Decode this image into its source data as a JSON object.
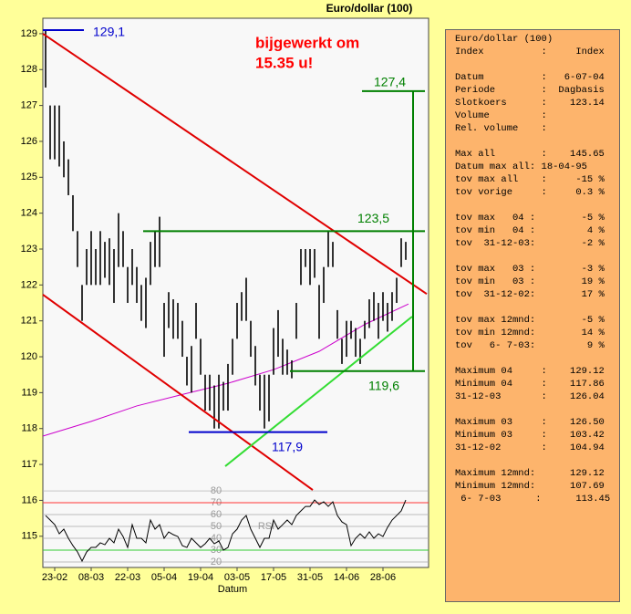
{
  "chart_data": [
    {
      "type": "hilo",
      "title": "Euro/dollar (100)",
      "x_label": "Datum",
      "color": "#000000",
      "x": [
        0,
        1,
        2,
        3,
        4,
        5,
        6,
        7,
        8,
        9,
        10,
        11,
        12,
        13,
        14,
        15,
        16,
        17,
        18,
        19,
        20,
        21,
        22,
        23,
        24,
        25,
        26,
        27,
        28,
        29,
        30,
        31,
        32,
        33,
        34,
        35,
        36,
        37,
        38,
        39,
        40,
        41,
        42,
        43,
        44,
        45,
        46,
        47,
        48,
        49,
        50,
        51,
        52,
        53,
        54,
        55,
        56,
        57,
        58,
        59,
        60,
        61,
        62,
        63,
        64,
        65,
        66,
        67,
        68,
        69,
        70,
        71,
        72,
        73,
        74,
        75,
        76,
        77,
        78,
        79
      ],
      "high": [
        129.1,
        127,
        127,
        127,
        126,
        125.5,
        124.5,
        123.5,
        122,
        123,
        123.5,
        123,
        123.5,
        123.2,
        123.3,
        123,
        124,
        123.5,
        122.5,
        123,
        122.5,
        122,
        122.2,
        123.2,
        123.5,
        123.9,
        121.5,
        121.8,
        121.6,
        121.5,
        121,
        120,
        120.3,
        121.5,
        120.5,
        119.5,
        119.5,
        119.2,
        119.5,
        119.3,
        119.8,
        120.5,
        121.5,
        121.8,
        122.2,
        121,
        120.3,
        119.5,
        119.5,
        119.5,
        120.8,
        121.3,
        120.5,
        120.2,
        119.9,
        121.5,
        123,
        123,
        123,
        123,
        122,
        122.5,
        123.5,
        123.2,
        121.3,
        120.5,
        121,
        121,
        120.8,
        120.5,
        121,
        121.6,
        121.8,
        121.5,
        121.8,
        121.5,
        121.8,
        122.2,
        123.3,
        123.2
      ],
      "low": [
        127.5,
        125.5,
        125.5,
        125.3,
        125,
        124.5,
        123.5,
        122.5,
        121,
        122,
        122,
        122,
        122,
        122.2,
        122,
        121.5,
        122.5,
        122.5,
        121.5,
        122,
        121.5,
        121,
        120.8,
        122,
        122.5,
        122.5,
        120,
        120.8,
        120.5,
        120.5,
        120,
        119.2,
        119,
        120.5,
        119.5,
        118.5,
        118.5,
        118,
        118,
        118.5,
        118.5,
        119.5,
        120.5,
        121,
        121,
        120,
        119.2,
        118.5,
        118,
        118.2,
        119.5,
        120,
        119.5,
        119.5,
        119.4,
        120.5,
        122,
        122.5,
        122,
        122.2,
        120.5,
        121.5,
        122.5,
        122.5,
        120.5,
        119.8,
        120,
        120.5,
        120,
        119.8,
        120.5,
        120.8,
        121,
        120.5,
        121,
        120.7,
        121,
        121.5,
        122.5,
        122.7
      ],
      "xlim": [
        -0.6,
        84
      ],
      "xticks": [
        {
          "value": 2,
          "label": "23-02"
        },
        {
          "value": 10,
          "label": "08-03"
        },
        {
          "value": 18,
          "label": "22-03"
        },
        {
          "value": 26,
          "label": "05-04"
        },
        {
          "value": 34,
          "label": "19-04"
        },
        {
          "value": 42,
          "label": "03-05"
        },
        {
          "value": 50,
          "label": "17-05"
        },
        {
          "value": 58,
          "label": "31-05"
        },
        {
          "value": 66,
          "label": "14-06"
        },
        {
          "value": 74,
          "label": "28-06"
        }
      ],
      "ylim": [
        114.13,
        129.43
      ],
      "yticks": [
        115,
        116,
        117,
        118,
        119,
        120,
        121,
        122,
        123,
        124,
        125,
        126,
        127,
        128,
        129
      ],
      "moving_average": {
        "color": "#cc00cc",
        "x": [
          -0.6,
          10,
          20,
          30,
          40,
          50,
          60,
          70,
          79.6
        ],
        "values": [
          117.79,
          118.2,
          118.63,
          118.95,
          119.26,
          119.64,
          120.15,
          120.9,
          121.47
        ]
      },
      "lines": [
        {
          "color": "#e00000",
          "x": [
            -0.6,
            83.6
          ],
          "values": [
            129,
            121.75
          ]
        },
        {
          "color": "#e00000",
          "x": [
            -0.6,
            58.6
          ],
          "values": [
            121.73,
            116.29
          ]
        },
        {
          "color": "#33dd33",
          "x": [
            39.4,
            80.4
          ],
          "values": [
            116.95,
            121.12
          ]
        },
        {
          "color": "#008000",
          "x": [
            21.4,
            83.2
          ],
          "values": [
            123.5,
            123.5
          ]
        },
        {
          "color": "#008000",
          "x": [
            53.6,
            83.2
          ],
          "values": [
            119.6,
            119.6
          ]
        },
        {
          "color": "#008000",
          "x": [
            69.4,
            83.2
          ],
          "values": [
            127.4,
            127.4
          ]
        },
        {
          "color": "#008000",
          "x": [
            80.6,
            80.6
          ],
          "values": [
            127.4,
            119.6
          ]
        },
        {
          "color": "#0000cc",
          "x": [
            -0.6,
            8.4
          ],
          "values": [
            129.1,
            129.1
          ]
        },
        {
          "color": "#0000cc",
          "x": [
            31.4,
            61.8
          ],
          "values": [
            117.9,
            117.9
          ]
        }
      ],
      "annotations": [
        {
          "value": 129.1,
          "label": "129,1",
          "color": "#0000cc"
        },
        {
          "value": 127.4,
          "label": "127,4",
          "color": "#008000"
        },
        {
          "value": 123.5,
          "label": "123,5",
          "color": "#008000"
        },
        {
          "value": 119.6,
          "label": "119,6",
          "color": "#008000"
        },
        {
          "value": 117.9,
          "label": "117,9",
          "color": "#0000cc"
        }
      ],
      "note": {
        "color": "#ff0000",
        "text": [
          "bijgewerkt om",
          "15.35 u!"
        ]
      }
    },
    {
      "type": "line",
      "title": "RSI",
      "color": "#000000",
      "values": [
        59.2,
        55.4,
        51.5,
        43.8,
        47.7,
        40,
        33.8,
        28.5,
        20.8,
        28.5,
        32.3,
        32.3,
        36.2,
        34.6,
        40,
        36.2,
        47.7,
        41.5,
        32.3,
        51.5,
        40,
        40,
        36.2,
        55.4,
        47.7,
        51.5,
        40,
        45.4,
        43.1,
        41.5,
        33.8,
        32.3,
        40,
        36.2,
        32.3,
        35.4,
        40,
        35.4,
        37.7,
        30,
        32.3,
        43.8,
        47.7,
        55.4,
        59.2,
        47.7,
        40,
        32.3,
        40,
        40,
        55.4,
        47.7,
        51.5,
        55.4,
        51.5,
        59.2,
        63.1,
        66.9,
        66.9,
        72.3,
        68.5,
        70.8,
        66.9,
        70.8,
        59.2,
        53.8,
        51.5,
        33.8,
        40,
        43.8,
        40,
        45.4,
        40,
        43.8,
        41.5,
        49.2,
        55.4,
        59.2,
        63.1,
        72.3
      ],
      "ylim": [
        15.4,
        80.8
      ],
      "yticks": [
        20,
        30,
        40,
        50,
        60,
        70,
        80
      ],
      "levels": [
        {
          "value": 70,
          "color": "#ff3333"
        },
        {
          "value": 30,
          "color": "#33cc33"
        }
      ],
      "grid_color": "#aaaaaa"
    }
  ],
  "panel": {
    "blocks": [
      [
        "Euro/dollar (100)",
        "Index          :     Index"
      ],
      [
        "Datum          :   6-07-04",
        "Periode        :  Dagbasis",
        "Slotkoers      :    123.14",
        "Volume         :",
        "Rel. volume    :"
      ],
      [
        "Max all        :    145.65",
        "Datum max all: 18-04-95",
        "tov max all    :     -15 %",
        "tov vorige     :     0.3 %"
      ],
      [
        "tov max   04 :        -5 %",
        "tov min   04 :         4 %",
        "tov  31-12-03:        -2 %"
      ],
      [
        "tov max   03 :        -3 %",
        "tov min   03 :        19 %",
        "tov  31-12-02:        17 %"
      ],
      [
        "tov max 12mnd:        -5 %",
        "tov min 12mnd:        14 %",
        "tov   6- 7-03:         9 %"
      ],
      [
        "Maximum 04     :    129.12",
        "Minimum 04     :    117.86",
        "31-12-03       :    126.04"
      ],
      [
        "Maximum 03     :    126.50",
        "Minimum 03     :    103.42",
        "31-12-02       :    104.94"
      ],
      [
        "Maximum 12mnd:      129.12",
        "Minimum 12mnd:      107.69",
        " 6- 7-03      :      113.45"
      ]
    ]
  }
}
